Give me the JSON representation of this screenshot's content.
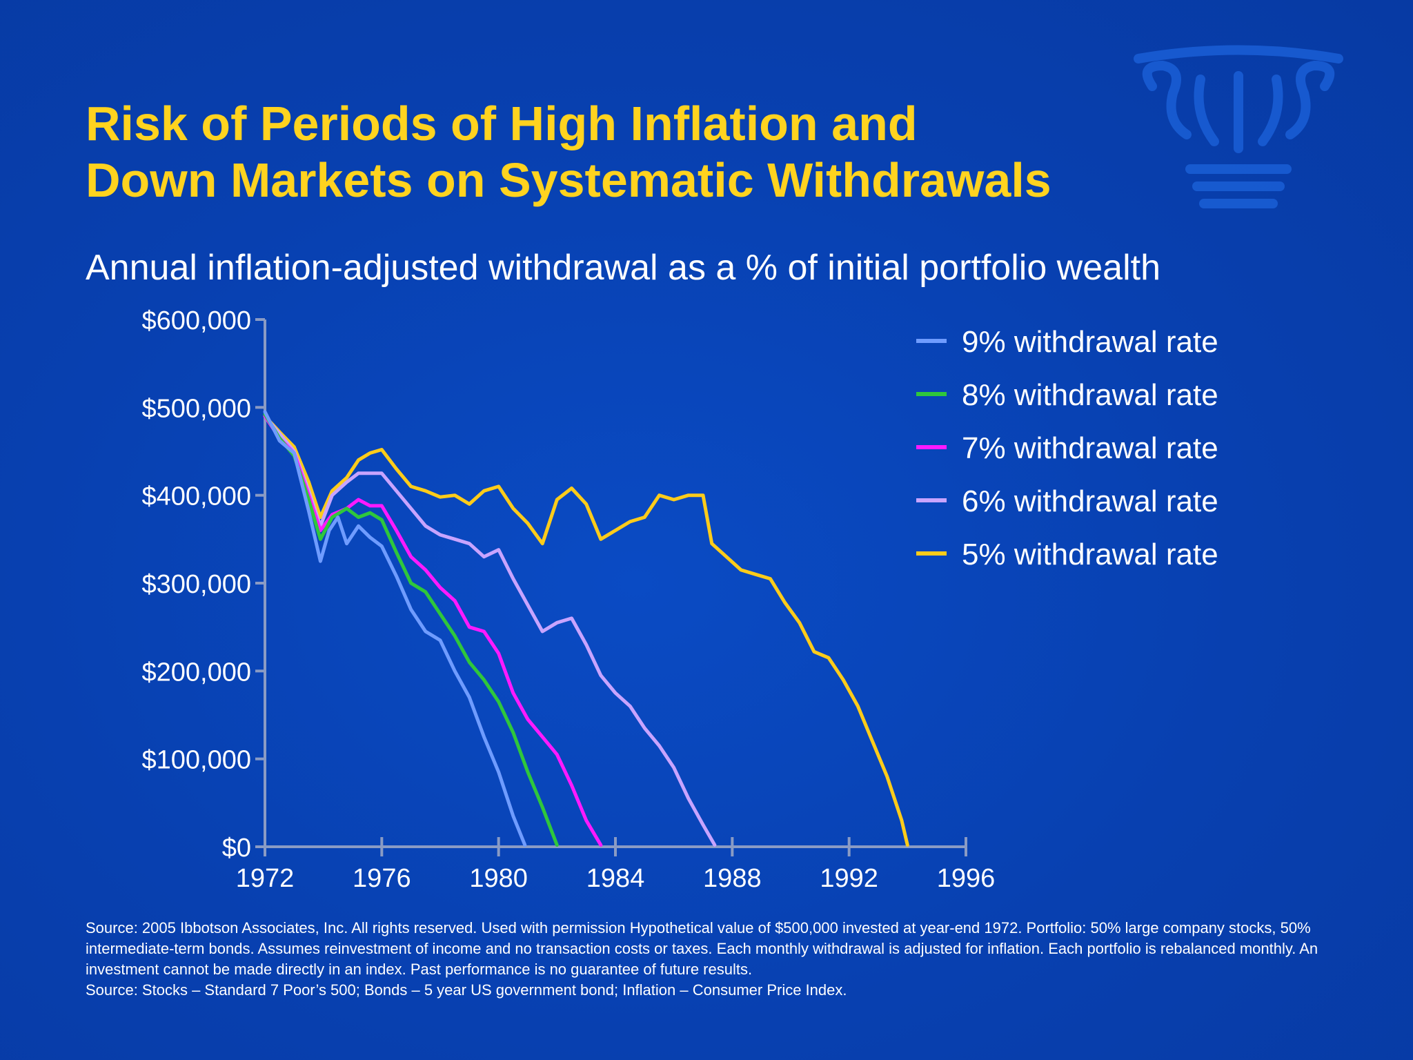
{
  "title_line1": "Risk of Periods of High Inflation and",
  "title_line2": "Down Markets on Systematic Withdrawals",
  "subtitle": "Annual inflation-adjusted withdrawal as a % of initial portfolio wealth",
  "source_note_1": "Source: 2005 Ibbotson Associates, Inc.  All rights reserved.  Used with permission Hypothetical value of $500,000 invested at year-end 1972. Portfolio: 50% large company stocks, 50% intermediate-term bonds. Assumes reinvestment of income and no transaction costs or taxes.   Each monthly withdrawal is adjusted for inflation.  Each portfolio is rebalanced monthly.  An investment cannot be made directly in an index.  Past performance is no guarantee of future results.",
  "source_note_2": "Source:  Stocks – Standard 7 Poor’s 500; Bonds – 5 year US government bond; Inflation – Consumer Price Index.",
  "logo_icon": "column-capital-icon",
  "chart_data": {
    "type": "line",
    "xlim": [
      1972,
      1996
    ],
    "ylim": [
      0,
      600000
    ],
    "x_ticks": [
      1972,
      1976,
      1980,
      1984,
      1988,
      1992,
      1996
    ],
    "x_tick_labels": [
      "1972",
      "1976",
      "1980",
      "1984",
      "1988",
      "1992",
      "1996"
    ],
    "y_ticks": [
      0,
      100000,
      200000,
      300000,
      400000,
      500000,
      600000
    ],
    "y_tick_labels": [
      "$0",
      "$100,000",
      "$200,000",
      "$300,000",
      "$400,000",
      "$500,000",
      "$600,000"
    ],
    "legend_position": "top-right",
    "grid": false,
    "series": [
      {
        "name": "9% withdrawal rate",
        "color": "#6f9cff",
        "points": [
          [
            1972,
            495000
          ],
          [
            1972.5,
            462000
          ],
          [
            1973,
            448000
          ],
          [
            1973.5,
            382000
          ],
          [
            1973.9,
            325000
          ],
          [
            1974.2,
            360000
          ],
          [
            1974.5,
            375000
          ],
          [
            1974.8,
            345000
          ],
          [
            1975.2,
            365000
          ],
          [
            1975.6,
            352000
          ],
          [
            1976,
            342000
          ],
          [
            1976.5,
            308000
          ],
          [
            1977,
            270000
          ],
          [
            1977.5,
            245000
          ],
          [
            1978,
            235000
          ],
          [
            1978.5,
            200000
          ],
          [
            1979,
            170000
          ],
          [
            1979.5,
            125000
          ],
          [
            1980,
            85000
          ],
          [
            1980.5,
            35000
          ],
          [
            1980.9,
            2000
          ]
        ]
      },
      {
        "name": "8% withdrawal rate",
        "color": "#2fc73c",
        "points": [
          [
            1972,
            492000
          ],
          [
            1972.5,
            465000
          ],
          [
            1973,
            445000
          ],
          [
            1973.5,
            395000
          ],
          [
            1973.9,
            350000
          ],
          [
            1974.3,
            375000
          ],
          [
            1974.8,
            385000
          ],
          [
            1975.2,
            375000
          ],
          [
            1975.6,
            380000
          ],
          [
            1976,
            372000
          ],
          [
            1976.5,
            335000
          ],
          [
            1977,
            300000
          ],
          [
            1977.5,
            290000
          ],
          [
            1978,
            265000
          ],
          [
            1978.5,
            240000
          ],
          [
            1979,
            210000
          ],
          [
            1979.5,
            190000
          ],
          [
            1980,
            165000
          ],
          [
            1980.5,
            130000
          ],
          [
            1981,
            85000
          ],
          [
            1981.5,
            45000
          ],
          [
            1982,
            2000
          ]
        ]
      },
      {
        "name": "7% withdrawal rate",
        "color": "#ff1aff",
        "points": [
          [
            1972,
            490000
          ],
          [
            1972.5,
            465000
          ],
          [
            1973,
            448000
          ],
          [
            1973.5,
            400000
          ],
          [
            1973.9,
            360000
          ],
          [
            1974.3,
            378000
          ],
          [
            1974.8,
            385000
          ],
          [
            1975.2,
            395000
          ],
          [
            1975.6,
            388000
          ],
          [
            1976,
            388000
          ],
          [
            1976.5,
            360000
          ],
          [
            1977,
            330000
          ],
          [
            1977.5,
            315000
          ],
          [
            1978,
            295000
          ],
          [
            1978.5,
            280000
          ],
          [
            1979,
            250000
          ],
          [
            1979.5,
            245000
          ],
          [
            1980,
            220000
          ],
          [
            1980.5,
            175000
          ],
          [
            1981,
            145000
          ],
          [
            1981.5,
            125000
          ],
          [
            1982,
            105000
          ],
          [
            1982.5,
            70000
          ],
          [
            1983,
            30000
          ],
          [
            1983.5,
            2000
          ]
        ]
      },
      {
        "name": "6% withdrawal rate",
        "color": "#c8a4ff",
        "points": [
          [
            1972,
            490000
          ],
          [
            1972.5,
            470000
          ],
          [
            1973,
            450000
          ],
          [
            1973.5,
            405000
          ],
          [
            1973.9,
            365000
          ],
          [
            1974.3,
            400000
          ],
          [
            1974.8,
            415000
          ],
          [
            1975.2,
            425000
          ],
          [
            1975.6,
            425000
          ],
          [
            1976,
            425000
          ],
          [
            1976.5,
            405000
          ],
          [
            1977,
            385000
          ],
          [
            1977.5,
            365000
          ],
          [
            1978,
            355000
          ],
          [
            1978.5,
            350000
          ],
          [
            1979,
            345000
          ],
          [
            1979.5,
            330000
          ],
          [
            1980,
            338000
          ],
          [
            1980.5,
            305000
          ],
          [
            1981,
            275000
          ],
          [
            1981.5,
            245000
          ],
          [
            1982,
            255000
          ],
          [
            1982.5,
            260000
          ],
          [
            1983,
            230000
          ],
          [
            1983.5,
            195000
          ],
          [
            1984,
            175000
          ],
          [
            1984.5,
            160000
          ],
          [
            1985,
            135000
          ],
          [
            1985.5,
            115000
          ],
          [
            1986,
            90000
          ],
          [
            1986.5,
            55000
          ],
          [
            1987,
            25000
          ],
          [
            1987.4,
            2000
          ]
        ]
      },
      {
        "name": "5% withdrawal rate",
        "color": "#ffcc1a",
        "points": [
          [
            1972,
            490000
          ],
          [
            1972.5,
            472000
          ],
          [
            1973,
            455000
          ],
          [
            1973.5,
            415000
          ],
          [
            1973.9,
            375000
          ],
          [
            1974.3,
            405000
          ],
          [
            1974.8,
            420000
          ],
          [
            1975.2,
            440000
          ],
          [
            1975.6,
            448000
          ],
          [
            1976,
            452000
          ],
          [
            1976.5,
            430000
          ],
          [
            1977,
            410000
          ],
          [
            1977.5,
            405000
          ],
          [
            1978,
            398000
          ],
          [
            1978.5,
            400000
          ],
          [
            1979,
            390000
          ],
          [
            1979.5,
            405000
          ],
          [
            1980,
            410000
          ],
          [
            1980.5,
            385000
          ],
          [
            1981,
            368000
          ],
          [
            1981.5,
            345000
          ],
          [
            1982,
            395000
          ],
          [
            1982.5,
            408000
          ],
          [
            1983,
            390000
          ],
          [
            1983.5,
            350000
          ],
          [
            1984,
            360000
          ],
          [
            1984.5,
            370000
          ],
          [
            1985,
            375000
          ],
          [
            1985.5,
            400000
          ],
          [
            1986,
            395000
          ],
          [
            1986.5,
            400000
          ],
          [
            1987,
            400000
          ],
          [
            1987.3,
            345000
          ],
          [
            1987.8,
            330000
          ],
          [
            1988.3,
            315000
          ],
          [
            1988.8,
            310000
          ],
          [
            1989.3,
            305000
          ],
          [
            1989.8,
            278000
          ],
          [
            1990.3,
            255000
          ],
          [
            1990.8,
            222000
          ],
          [
            1991.3,
            215000
          ],
          [
            1991.8,
            190000
          ],
          [
            1992.3,
            160000
          ],
          [
            1992.8,
            120000
          ],
          [
            1993.3,
            80000
          ],
          [
            1993.8,
            30000
          ],
          [
            1994,
            2000
          ]
        ]
      }
    ]
  }
}
